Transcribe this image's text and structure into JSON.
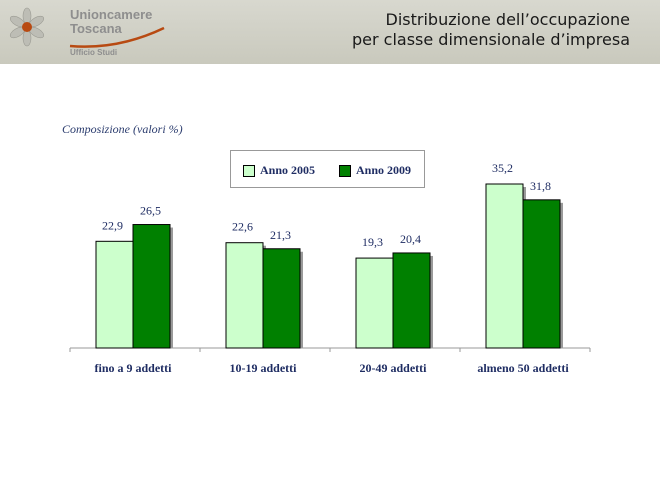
{
  "header": {
    "logo_line1": "Unioncamere",
    "logo_line2": "Toscana",
    "logo_sub": "Ufficio Studi",
    "title_line1": "Distribuzione dell’occupazione",
    "title_line2": "per classe dimensionale d’impresa"
  },
  "colors": {
    "series_2005": "#ccffcc",
    "series_2009": "#008000",
    "logo_accent": "#b84a12"
  },
  "chart_data": {
    "type": "bar",
    "title": "Composizione (valori %)",
    "categories": [
      "fino a 9 addetti",
      "10-19 addetti",
      "20-49 addetti",
      "almeno 50 addetti"
    ],
    "series": [
      {
        "name": "Anno 2005",
        "values": [
          22.9,
          22.6,
          19.3,
          35.2
        ],
        "labels": [
          "22,9",
          "22,6",
          "19,3",
          "35,2"
        ]
      },
      {
        "name": "Anno 2009",
        "values": [
          26.5,
          21.3,
          20.4,
          31.8
        ],
        "labels": [
          "26,5",
          "21,3",
          "20,4",
          "31,8"
        ]
      }
    ],
    "ylim": [
      0,
      40
    ],
    "legend_position": "top-center",
    "grid": false
  }
}
